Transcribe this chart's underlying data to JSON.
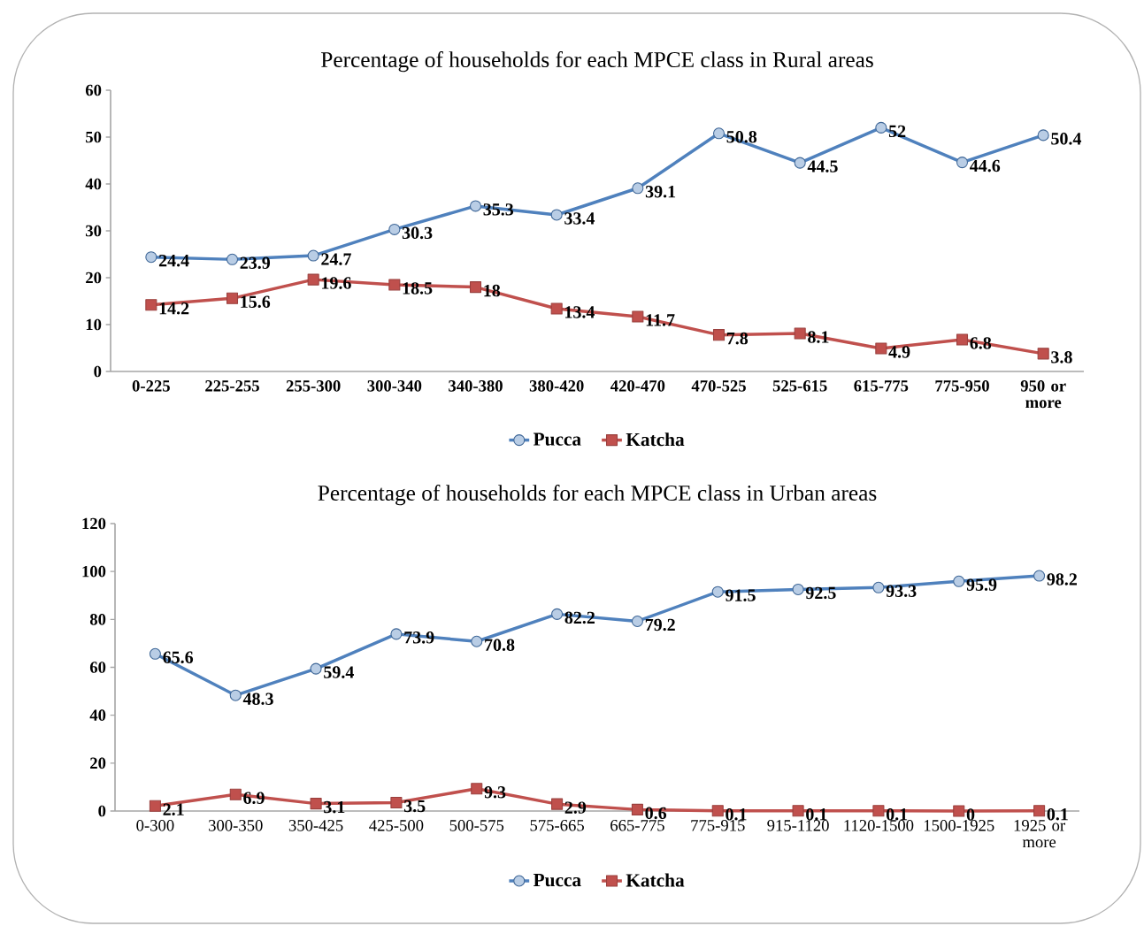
{
  "chart_data": [
    {
      "type": "line",
      "title": "Percentage of households for each MPCE class in Rural areas",
      "categories": [
        "0-225",
        "225-255",
        "255-300",
        "300-340",
        "340-380",
        "380-420",
        "420-470",
        "470-525",
        "525-615",
        "615-775",
        "775-950",
        "950 or more"
      ],
      "series": [
        {
          "name": "Pucca",
          "color": "#4f81bd",
          "marker": "circle",
          "values": [
            24.4,
            23.9,
            24.7,
            30.3,
            35.3,
            33.4,
            39.1,
            50.8,
            44.5,
            52,
            44.6,
            50.4
          ]
        },
        {
          "name": "Katcha",
          "color": "#c0504d",
          "marker": "square",
          "values": [
            14.2,
            15.6,
            19.6,
            18.5,
            18,
            13.4,
            11.7,
            7.8,
            8.1,
            4.9,
            6.8,
            3.8
          ]
        }
      ],
      "ylim": [
        0,
        60
      ],
      "yticks": [
        0,
        10,
        20,
        30,
        40,
        50,
        60
      ],
      "data_labels": true,
      "legend": "bottom",
      "line_style": "solid"
    },
    {
      "type": "line",
      "title": "Percentage of households for each MPCE class in Urban areas",
      "categories": [
        "0-300",
        "300-350",
        "350-425",
        "425-500",
        "500-575",
        "575-665",
        "665-775",
        "775-915",
        "915-1120",
        "1120-1500",
        "1500-1925",
        "1925 or more"
      ],
      "series": [
        {
          "name": "Pucca",
          "color": "#4f81bd",
          "marker": "circle",
          "values": [
            65.6,
            48.3,
            59.4,
            73.9,
            70.8,
            82.2,
            79.2,
            91.5,
            92.5,
            93.3,
            95.9,
            98.2
          ]
        },
        {
          "name": "Katcha",
          "color": "#c0504d",
          "marker": "square",
          "values": [
            2.1,
            6.9,
            3.1,
            3.5,
            9.3,
            2.9,
            0.6,
            0.1,
            0.1,
            0.1,
            0,
            0.1
          ]
        }
      ],
      "ylim": [
        0,
        120
      ],
      "yticks": [
        0,
        20,
        40,
        60,
        80,
        100,
        120
      ],
      "data_labels": true,
      "legend": "bottom",
      "line_style": "solid"
    }
  ]
}
